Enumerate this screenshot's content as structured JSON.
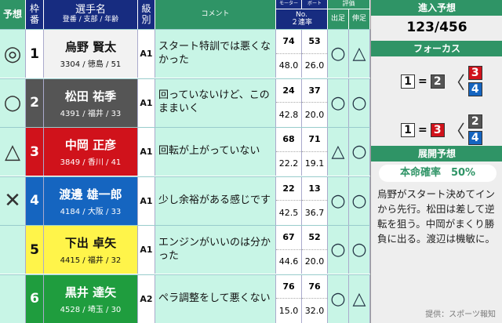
{
  "header": {
    "yoso": "予想",
    "waku": "枠番",
    "name": "選手名",
    "name_sub": "登番 / 支部 / 年齢",
    "class": "級別",
    "comment": "コメント",
    "motor": "モーター",
    "boat": "ボート",
    "no": "No.",
    "rate": "２連率",
    "eval": "評価",
    "dashi": "出足",
    "nobi": "伸足"
  },
  "rows": [
    {
      "mark": "◎",
      "lane": "1",
      "name": "烏野 賢太",
      "info": "3304 / 徳島 / 51",
      "class": "A1",
      "comment": "スタート特訓では悪くなかった",
      "motor_no": "74",
      "boat_no": "53",
      "motor_rate": "48.0",
      "boat_rate": "26.0",
      "dashi": "○",
      "nobi": "△",
      "bg": "#ffffff",
      "fg": "#111111"
    },
    {
      "mark": "○",
      "lane": "2",
      "name": "松田 祐季",
      "info": "4391 / 福井 / 33",
      "class": "A1",
      "comment": "回っていないけど、このままいく",
      "motor_no": "24",
      "boat_no": "37",
      "motor_rate": "42.8",
      "boat_rate": "20.0",
      "dashi": "○",
      "nobi": "○",
      "bg": "#555555",
      "fg": "#ffffff"
    },
    {
      "mark": "△",
      "lane": "3",
      "name": "中岡 正彦",
      "info": "3849 / 香川 / 41",
      "class": "A1",
      "comment": "回転が上がっていない",
      "motor_no": "68",
      "boat_no": "71",
      "motor_rate": "22.2",
      "boat_rate": "19.1",
      "dashi": "△",
      "nobi": "○",
      "bg": "#d0121b",
      "fg": "#ffffff"
    },
    {
      "mark": "✕",
      "lane": "4",
      "name": "渡邊 雄一郎",
      "info": "4184 / 大阪 / 33",
      "class": "A1",
      "comment": "少し余裕がある感じです",
      "motor_no": "22",
      "boat_no": "13",
      "motor_rate": "42.5",
      "boat_rate": "36.7",
      "dashi": "○",
      "nobi": "○",
      "bg": "#1565c0",
      "fg": "#ffffff"
    },
    {
      "mark": "",
      "lane": "5",
      "name": "下出 卓矢",
      "info": "4415 / 福井 / 32",
      "class": "A1",
      "comment": "エンジンがいいのは分かった",
      "motor_no": "67",
      "boat_no": "52",
      "motor_rate": "44.6",
      "boat_rate": "20.0",
      "dashi": "○",
      "nobi": "○",
      "bg": "#fff44a",
      "fg": "#111111"
    },
    {
      "mark": "",
      "lane": "6",
      "name": "黒井 達矢",
      "info": "4528 / 埼玉 / 30",
      "class": "A2",
      "comment": "ペラ調整をして悪くない",
      "motor_no": "76",
      "boat_no": "76",
      "motor_rate": "15.0",
      "boat_rate": "32.0",
      "dashi": "○",
      "nobi": "△",
      "bg": "#1f9d3e",
      "fg": "#ffffff"
    }
  ],
  "panel": {
    "entry_title": "進入予想",
    "entry": "123/456",
    "focus_title": "フォーカス",
    "focus": [
      {
        "a": "1",
        "b": "2",
        "c": [
          "3",
          "4"
        ]
      },
      {
        "a": "1",
        "b": "3",
        "c": [
          "2",
          "4"
        ]
      }
    ],
    "eq": "=",
    "bracket": "〈",
    "tenkai_title": "展開予想",
    "prob": "本命確率　50%",
    "text": "烏野がスタート決めてインから先行。松田は差して逆転を狙う。中岡がまくり勝負に出る。渡辺は機敏に。",
    "credit": "提供：スポーツ報知"
  },
  "lane_colors": {
    "1": "#ffffff",
    "2": "#555555",
    "3": "#d0121b",
    "4": "#1565c0"
  }
}
